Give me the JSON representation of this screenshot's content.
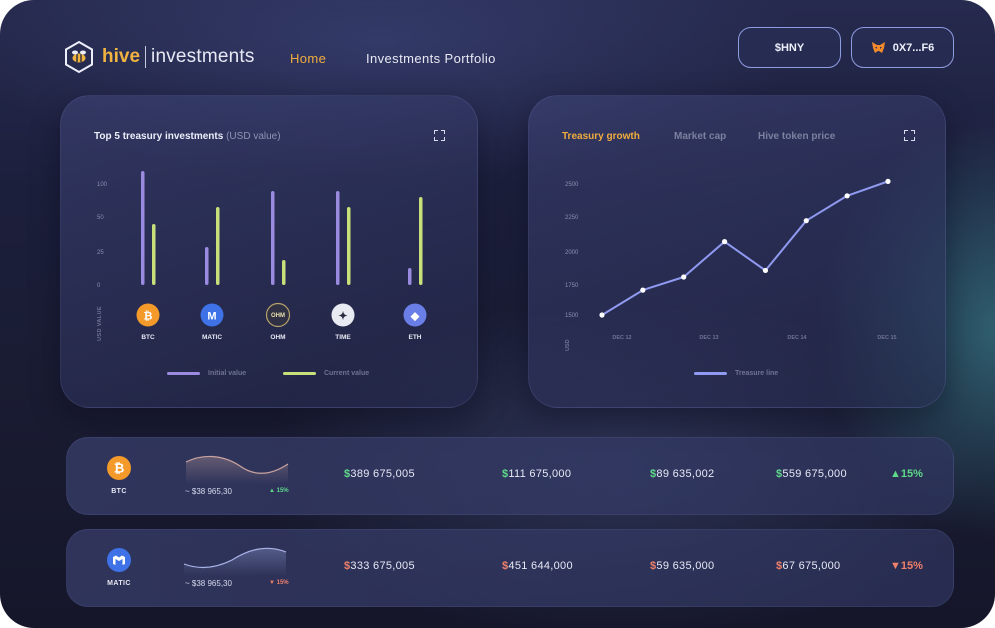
{
  "header": {
    "brand_left": "hive",
    "brand_right": "investments",
    "nav": {
      "home": "Home",
      "portfolio": "Investments Portfolio"
    },
    "token_button": "$HNY",
    "wallet_button": "0X7...F6"
  },
  "treasury_card": {
    "title": "Top 5 treasury investments",
    "subtitle": "(USD value)",
    "y_axis_label": "USD VALUE",
    "legend": {
      "initial": "Initial value",
      "current": "Current value"
    }
  },
  "growth_card": {
    "tabs": [
      "Treasury growth",
      "Market cap",
      "Hive token price"
    ],
    "active_tab": "Treasury growth",
    "y_axis_label": "USD",
    "legend": "Treasure line"
  },
  "chart_data": [
    {
      "type": "bar",
      "title": "Top 5 treasury investments",
      "subtitle": "(USD value)",
      "ylabel": "USD VALUE",
      "yticks": [
        "100",
        "50",
        "25",
        "0"
      ],
      "categories": [
        "BTC",
        "MATIC",
        "OHM",
        "TIME",
        "ETH"
      ],
      "series": [
        {
          "name": "Initial value",
          "values": [
            114,
            38,
            94,
            94,
            17
          ]
        },
        {
          "name": "Current value",
          "values": [
            61,
            78,
            25,
            78,
            88
          ]
        }
      ],
      "ylim": [
        0,
        120
      ],
      "colors": {
        "initial": "#9b8be0",
        "current": "#c8e07a"
      }
    },
    {
      "type": "line",
      "title": "Treasury growth",
      "ylabel": "USD",
      "yticks": [
        "2500",
        "2250",
        "2000",
        "1750",
        "1500"
      ],
      "xticks": [
        "DEC 12",
        "DEC 13",
        "DEC 14",
        "DEC 15"
      ],
      "series": [
        {
          "name": "Treasure line",
          "values": [
            1500,
            1690,
            1790,
            2060,
            1840,
            2220,
            2410,
            2520
          ]
        }
      ],
      "ylim": [
        1500,
        2500
      ],
      "color": "#8f9af0"
    }
  ],
  "rows": [
    {
      "symbol": "BTC",
      "coin_color": "#f39a2b",
      "price": "~ $38 965,30",
      "change_small": "15%",
      "direction": "up",
      "amounts": [
        "389 675,005",
        "111 675,000",
        "89 635,002",
        "559 675,000"
      ],
      "change": "15%"
    },
    {
      "symbol": "MATIC",
      "coin_color": "#3f72e6",
      "price": "~ $38 965,30",
      "change_small": "15%",
      "direction": "down",
      "amounts": [
        "333 675,005",
        "451 644,000",
        "59 635,000",
        "67 675,000"
      ],
      "change": "15%"
    }
  ]
}
